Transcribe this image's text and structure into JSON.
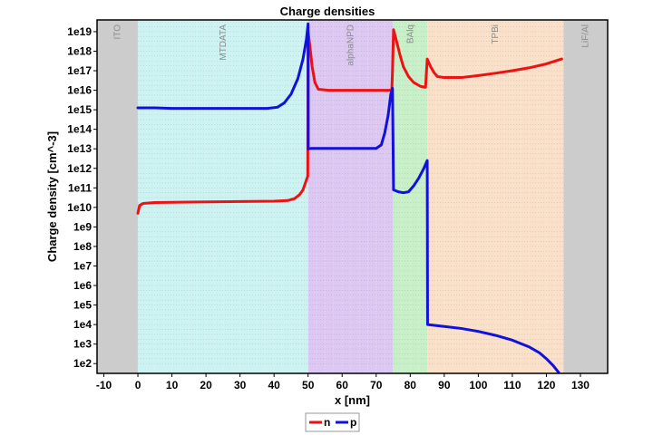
{
  "chart_data": {
    "type": "line",
    "title": "Charge densities",
    "xlabel": "x [nm]",
    "ylabel": "Charge density [cm^-3]",
    "x_range": [
      -12,
      138
    ],
    "y_log_range": [
      1.5,
      19.6
    ],
    "y_scale": "log",
    "x_ticks": [
      -10,
      0,
      10,
      20,
      30,
      40,
      50,
      60,
      70,
      80,
      90,
      100,
      110,
      120,
      130
    ],
    "y_ticks": [
      {
        "exp": 2,
        "label": "1e2"
      },
      {
        "exp": 3,
        "label": "1e3"
      },
      {
        "exp": 4,
        "label": "1e4"
      },
      {
        "exp": 5,
        "label": "1e5"
      },
      {
        "exp": 6,
        "label": "1e6"
      },
      {
        "exp": 7,
        "label": "1e7"
      },
      {
        "exp": 8,
        "label": "1e8"
      },
      {
        "exp": 9,
        "label": "1e9"
      },
      {
        "exp": 10,
        "label": "1e10"
      },
      {
        "exp": 11,
        "label": "1e11"
      },
      {
        "exp": 12,
        "label": "1e12"
      },
      {
        "exp": 13,
        "label": "1e13"
      },
      {
        "exp": 14,
        "label": "1e14"
      },
      {
        "exp": 15,
        "label": "1e15"
      },
      {
        "exp": 16,
        "label": "1e16"
      },
      {
        "exp": 17,
        "label": "1e17"
      },
      {
        "exp": 18,
        "label": "1e18"
      },
      {
        "exp": 19,
        "label": "1e19"
      }
    ],
    "grid": true,
    "legend_position": "bottom-center",
    "regions": [
      {
        "label": "ITO",
        "x0": -12,
        "x1": 0,
        "color": "#cccccc"
      },
      {
        "label": "MTDATA",
        "x0": 0,
        "x1": 50,
        "color": "#ccf2f2"
      },
      {
        "label": "alphaNPD",
        "x0": 50,
        "x1": 75,
        "color": "#dcc8f2"
      },
      {
        "label": "BAlq",
        "x0": 75,
        "x1": 85,
        "color": "#c8f0c8"
      },
      {
        "label": "TPBi",
        "x0": 85,
        "x1": 125,
        "color": "#fae0c8"
      },
      {
        "label": "LiF/Al",
        "x0": 125,
        "x1": 138,
        "color": "#cccccc"
      }
    ],
    "series": [
      {
        "name": "n",
        "color": "#ee1111",
        "points": [
          [
            0,
            9.7
          ],
          [
            0.5,
            10.1
          ],
          [
            1.5,
            10.2
          ],
          [
            5,
            10.25
          ],
          [
            15,
            10.27
          ],
          [
            30,
            10.3
          ],
          [
            40,
            10.32
          ],
          [
            44,
            10.35
          ],
          [
            46,
            10.45
          ],
          [
            47.5,
            10.65
          ],
          [
            48.5,
            10.9
          ],
          [
            49.5,
            11.4
          ],
          [
            49.9,
            11.6
          ],
          [
            50,
            19.0
          ],
          [
            50.5,
            18.3
          ],
          [
            51.2,
            17.2
          ],
          [
            52,
            16.4
          ],
          [
            53,
            16.05
          ],
          [
            56,
            16.0
          ],
          [
            65,
            16.0
          ],
          [
            74.6,
            16.0
          ],
          [
            74.8,
            17.0
          ],
          [
            75.1,
            19.1
          ],
          [
            76,
            18.5
          ],
          [
            77,
            17.8
          ],
          [
            78,
            17.2
          ],
          [
            79.5,
            16.7
          ],
          [
            81,
            16.4
          ],
          [
            83,
            16.2
          ],
          [
            84.5,
            16.15
          ],
          [
            85,
            17.6
          ],
          [
            86,
            17.2
          ],
          [
            87,
            16.9
          ],
          [
            88,
            16.7
          ],
          [
            90,
            16.65
          ],
          [
            95,
            16.65
          ],
          [
            100,
            16.75
          ],
          [
            105,
            16.87
          ],
          [
            110,
            17.0
          ],
          [
            115,
            17.15
          ],
          [
            120,
            17.35
          ],
          [
            124.5,
            17.6
          ]
        ]
      },
      {
        "name": "p",
        "color": "#1111dd",
        "points": [
          [
            0,
            15.1
          ],
          [
            5,
            15.1
          ],
          [
            10,
            15.07
          ],
          [
            20,
            15.07
          ],
          [
            30,
            15.07
          ],
          [
            38,
            15.07
          ],
          [
            41,
            15.13
          ],
          [
            43,
            15.35
          ],
          [
            45,
            15.8
          ],
          [
            47,
            16.6
          ],
          [
            48.5,
            17.6
          ],
          [
            49.5,
            18.6
          ],
          [
            50,
            19.4
          ],
          [
            50.05,
            13.0
          ],
          [
            51,
            13.02
          ],
          [
            60,
            13.02
          ],
          [
            70,
            13.02
          ],
          [
            71.5,
            13.2
          ],
          [
            72.5,
            13.8
          ],
          [
            73.5,
            14.7
          ],
          [
            74.3,
            15.8
          ],
          [
            74.8,
            16.1
          ],
          [
            75.1,
            10.9
          ],
          [
            76.5,
            10.8
          ],
          [
            78,
            10.75
          ],
          [
            79.5,
            10.8
          ],
          [
            81,
            11.1
          ],
          [
            82.5,
            11.5
          ],
          [
            84,
            12.0
          ],
          [
            85,
            12.4
          ],
          [
            85.1,
            4.0
          ],
          [
            90,
            3.9
          ],
          [
            95,
            3.8
          ],
          [
            100,
            3.65
          ],
          [
            105,
            3.45
          ],
          [
            110,
            3.2
          ],
          [
            115,
            2.85
          ],
          [
            118,
            2.55
          ],
          [
            120,
            2.25
          ],
          [
            122,
            1.9
          ],
          [
            123.6,
            1.55
          ]
        ]
      }
    ]
  }
}
